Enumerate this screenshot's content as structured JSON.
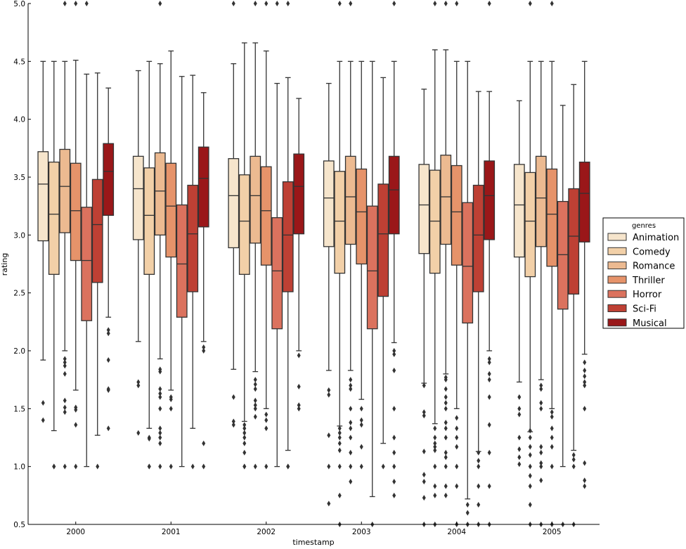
{
  "chart_data": {
    "type": "boxplot",
    "xlabel": "timestamp",
    "ylabel": "rating",
    "ylim": [
      0.5,
      5.0
    ],
    "yticks": [
      "0.5",
      "1.0",
      "1.5",
      "2.0",
      "2.5",
      "3.0",
      "3.5",
      "4.0",
      "4.5",
      "5.0"
    ],
    "categories": [
      "2000",
      "2001",
      "2002",
      "2003",
      "2004",
      "2005"
    ],
    "legend": {
      "title": "genres",
      "placement": "right"
    },
    "grid": false,
    "series": [
      {
        "name": "Animation",
        "color": "#f6e5cc",
        "boxes": [
          {
            "whislo": 1.92,
            "q1": 2.95,
            "med": 3.44,
            "q3": 3.72,
            "whishi": 4.5,
            "fliers": [
              1.55,
              1.4
            ]
          },
          {
            "whislo": 2.08,
            "q1": 2.96,
            "med": 3.4,
            "q3": 3.68,
            "whishi": 4.42,
            "fliers": [
              1.73,
              1.7,
              1.29
            ]
          },
          {
            "whislo": 1.84,
            "q1": 2.89,
            "med": 3.34,
            "q3": 3.66,
            "whishi": 4.48,
            "fliers": [
              5.0,
              1.6,
              1.39,
              1.36
            ]
          },
          {
            "whislo": 1.83,
            "q1": 2.9,
            "med": 3.32,
            "q3": 3.64,
            "whishi": 4.31,
            "fliers": [
              1.66,
              1.62,
              1.27,
              1.0,
              0.68
            ]
          },
          {
            "whislo": 1.72,
            "q1": 2.84,
            "med": 3.26,
            "q3": 3.61,
            "whishi": 4.26,
            "fliers": [
              1.7,
              1.47,
              1.44,
              1.13,
              0.93,
              0.87,
              0.73,
              0.5
            ]
          },
          {
            "whislo": 1.73,
            "q1": 2.81,
            "med": 3.26,
            "q3": 3.61,
            "whishi": 4.16,
            "fliers": [
              1.6,
              1.5,
              1.45,
              1.25,
              1.15,
              1.08,
              1.02
            ]
          }
        ]
      },
      {
        "name": "Comedy",
        "color": "#f2d0a8",
        "boxes": [
          {
            "whislo": 1.31,
            "q1": 2.66,
            "med": 3.18,
            "q3": 3.63,
            "whishi": 4.5,
            "fliers": [
              1.0,
              1.0
            ]
          },
          {
            "whislo": 1.33,
            "q1": 2.66,
            "med": 3.17,
            "q3": 3.58,
            "whishi": 4.5,
            "fliers": [
              1.25,
              1.24,
              1.0,
              1.0
            ]
          },
          {
            "whislo": 1.39,
            "q1": 2.66,
            "med": 3.12,
            "q3": 3.52,
            "whishi": 4.66,
            "fliers": [
              1.36,
              1.33,
              1.29,
              1.25,
              1.2,
              1.12,
              1.0,
              1.0
            ]
          },
          {
            "whislo": 1.35,
            "q1": 2.67,
            "med": 3.12,
            "q3": 3.55,
            "whishi": 4.5,
            "fliers": [
              5.0,
              1.33,
              1.29,
              1.25,
              1.2,
              1.14,
              1.0,
              0.75,
              0.5
            ]
          },
          {
            "whislo": 1.37,
            "q1": 2.67,
            "med": 3.12,
            "q3": 3.56,
            "whishi": 4.6,
            "fliers": [
              5.0,
              1.33,
              1.25,
              1.2,
              1.17,
              1.14,
              1.0,
              0.83,
              0.75,
              0.5
            ]
          },
          {
            "whislo": 1.3,
            "q1": 2.64,
            "med": 3.12,
            "q3": 3.54,
            "whishi": 4.5,
            "fliers": [
              5.0,
              1.31,
              1.25,
              1.17,
              1.1,
              1.0,
              0.92,
              0.83,
              0.67,
              0.5
            ]
          }
        ]
      },
      {
        "name": "Romance",
        "color": "#ecba91",
        "boxes": [
          {
            "whislo": 2.0,
            "q1": 3.02,
            "med": 3.42,
            "q3": 3.74,
            "whishi": 4.5,
            "fliers": [
              5.0,
              1.93,
              1.9,
              1.87,
              1.8,
              1.57,
              1.51,
              1.47,
              1.0
            ]
          },
          {
            "whislo": 1.93,
            "q1": 3.0,
            "med": 3.38,
            "q3": 3.71,
            "whishi": 4.48,
            "fliers": [
              5.0,
              1.84,
              1.82,
              1.67,
              1.63,
              1.6,
              1.5,
              1.33,
              1.29,
              1.25,
              1.2,
              1.0
            ]
          },
          {
            "whislo": 1.82,
            "q1": 2.93,
            "med": 3.34,
            "q3": 3.68,
            "whishi": 4.66,
            "fliers": [
              5.0,
              1.75,
              1.71,
              1.67,
              1.57,
              1.53,
              1.5,
              1.43,
              1.0
            ]
          },
          {
            "whislo": 1.83,
            "q1": 2.92,
            "med": 3.33,
            "q3": 3.68,
            "whishi": 4.5,
            "fliers": [
              5.0,
              1.75,
              1.7,
              1.67,
              1.5,
              1.38,
              1.33,
              1.25,
              1.12,
              1.0,
              0.87
            ]
          },
          {
            "whislo": 1.8,
            "q1": 2.92,
            "med": 3.33,
            "q3": 3.69,
            "whishi": 4.6,
            "fliers": [
              5.0,
              1.77,
              1.75,
              1.67,
              1.6,
              1.55,
              1.5,
              1.38,
              1.33,
              1.25,
              1.12,
              1.08,
              1.0,
              0.83,
              0.75
            ]
          },
          {
            "whislo": 1.75,
            "q1": 2.9,
            "med": 3.32,
            "q3": 3.68,
            "whishi": 4.5,
            "fliers": [
              1.7,
              1.67,
              1.55,
              1.5,
              1.17,
              1.12,
              1.03,
              1.0,
              0.88,
              0.5
            ]
          }
        ]
      },
      {
        "name": "Thriller",
        "color": "#e6936a",
        "boxes": [
          {
            "whislo": 1.66,
            "q1": 2.78,
            "med": 3.21,
            "q3": 3.62,
            "whishi": 4.51,
            "fliers": [
              5.0,
              1.51,
              1.49,
              1.36,
              1.0
            ]
          },
          {
            "whislo": 1.66,
            "q1": 2.81,
            "med": 3.25,
            "q3": 3.62,
            "whishi": 4.59,
            "fliers": [
              1.6,
              1.58,
              1.5,
              1.0
            ]
          },
          {
            "whislo": 1.5,
            "q1": 2.74,
            "med": 3.21,
            "q3": 3.59,
            "whishi": 4.59,
            "fliers": [
              5.0,
              1.45,
              1.4,
              1.33,
              1.0
            ]
          },
          {
            "whislo": 1.58,
            "q1": 2.75,
            "med": 3.2,
            "q3": 3.57,
            "whishi": 4.5,
            "fliers": [
              1.5,
              1.4,
              1.36,
              1.17,
              1.0
            ]
          },
          {
            "whislo": 1.5,
            "q1": 2.74,
            "med": 3.2,
            "q3": 3.6,
            "whishi": 4.5,
            "fliers": [
              5.0,
              1.42,
              1.33,
              1.25,
              1.17,
              1.0,
              0.83,
              0.5
            ]
          },
          {
            "whislo": 1.5,
            "q1": 2.73,
            "med": 3.18,
            "q3": 3.57,
            "whishi": 4.5,
            "fliers": [
              5.0,
              1.47,
              1.43,
              1.33,
              1.25,
              1.17,
              1.0,
              0.5
            ]
          }
        ]
      },
      {
        "name": "Horror",
        "color": "#db725e",
        "boxes": [
          {
            "whislo": 1.0,
            "q1": 2.26,
            "med": 2.78,
            "q3": 3.24,
            "whishi": 4.39,
            "fliers": [
              5.0
            ]
          },
          {
            "whislo": 1.0,
            "q1": 2.29,
            "med": 2.75,
            "q3": 3.26,
            "whishi": 4.37,
            "fliers": []
          },
          {
            "whislo": 1.0,
            "q1": 2.19,
            "med": 2.69,
            "q3": 3.15,
            "whishi": 4.31,
            "fliers": [
              5.0
            ]
          },
          {
            "whislo": 0.74,
            "q1": 2.19,
            "med": 2.69,
            "q3": 3.25,
            "whishi": 4.5,
            "fliers": [
              0.5
            ]
          },
          {
            "whislo": 0.72,
            "q1": 2.24,
            "med": 2.73,
            "q3": 3.28,
            "whishi": 4.5,
            "fliers": [
              0.67,
              0.6,
              0.5
            ]
          },
          {
            "whislo": 1.0,
            "q1": 2.36,
            "med": 2.83,
            "q3": 3.29,
            "whishi": 4.12,
            "fliers": [
              0.5
            ]
          }
        ]
      },
      {
        "name": "Sci-Fi",
        "color": "#be4034",
        "boxes": [
          {
            "whislo": 1.27,
            "q1": 2.59,
            "med": 3.09,
            "q3": 3.48,
            "whishi": 4.4,
            "fliers": [
              1.0
            ]
          },
          {
            "whislo": 1.33,
            "q1": 2.51,
            "med": 3.01,
            "q3": 3.43,
            "whishi": 4.38,
            "fliers": [
              1.0
            ]
          },
          {
            "whislo": 1.14,
            "q1": 2.51,
            "med": 3.0,
            "q3": 3.46,
            "whishi": 4.36,
            "fliers": [
              5.0,
              1.0,
              1.0
            ]
          },
          {
            "whislo": 1.2,
            "q1": 2.47,
            "med": 3.01,
            "q3": 3.44,
            "whishi": 4.36,
            "fliers": [
              1.0
            ]
          },
          {
            "whislo": 1.13,
            "q1": 2.51,
            "med": 3.0,
            "q3": 3.43,
            "whishi": 4.24,
            "fliers": [
              1.12,
              1.05,
              1.0,
              0.83,
              0.67,
              0.5
            ]
          },
          {
            "whislo": 1.14,
            "q1": 2.49,
            "med": 2.99,
            "q3": 3.4,
            "whishi": 4.3,
            "fliers": [
              1.1,
              1.06,
              1.0,
              0.5
            ]
          }
        ]
      },
      {
        "name": "Musical",
        "color": "#9a1719",
        "boxes": [
          {
            "whislo": 2.29,
            "q1": 3.17,
            "med": 3.55,
            "q3": 3.79,
            "whishi": 4.27,
            "fliers": [
              2.18,
              2.15,
              1.92,
              1.67,
              1.66,
              1.33
            ]
          },
          {
            "whislo": 2.08,
            "q1": 3.07,
            "med": 3.49,
            "q3": 3.76,
            "whishi": 4.23,
            "fliers": [
              2.03,
              2.0,
              1.2,
              1.0
            ]
          },
          {
            "whislo": 2.0,
            "q1": 3.01,
            "med": 3.42,
            "q3": 3.7,
            "whishi": 4.18,
            "fliers": [
              1.96,
              1.69,
              1.53,
              1.5
            ]
          },
          {
            "whislo": 2.07,
            "q1": 3.01,
            "med": 3.39,
            "q3": 3.68,
            "whishi": 4.5,
            "fliers": [
              5.0,
              2.0,
              1.97,
              1.83,
              1.5,
              1.25,
              1.12,
              1.0,
              0.87,
              0.75
            ]
          },
          {
            "whislo": 2.0,
            "q1": 2.96,
            "med": 3.34,
            "q3": 3.64,
            "whishi": 4.24,
            "fliers": [
              5.0,
              1.93,
              1.9,
              1.8,
              1.75,
              1.6,
              1.36,
              1.12,
              0.83,
              0.5
            ]
          },
          {
            "whislo": 1.97,
            "q1": 2.94,
            "med": 3.36,
            "q3": 3.63,
            "whishi": 4.5,
            "fliers": [
              1.9,
              1.83,
              1.78,
              1.73,
              1.7,
              1.5,
              1.03,
              0.88,
              0.83
            ]
          }
        ]
      }
    ]
  }
}
